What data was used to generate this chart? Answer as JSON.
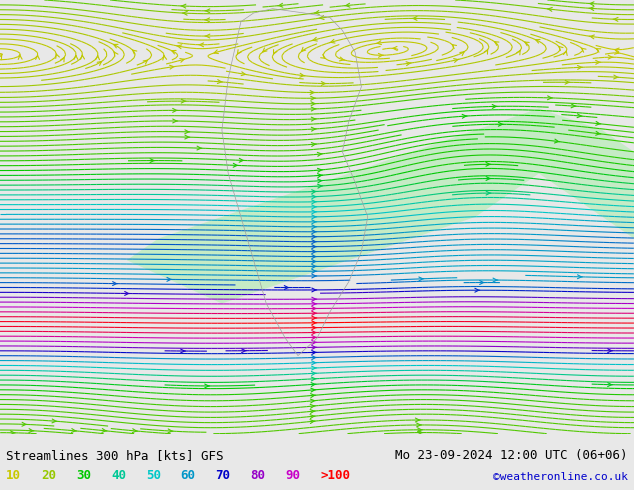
{
  "title_left": "Streamlines 300 hPa [kts] GFS",
  "title_right": "Mo 23-09-2024 12:00 UTC (06+06)",
  "watermark": "©weatheronline.co.uk",
  "legend_values": [
    "10",
    "20",
    "30",
    "40",
    "50",
    "60",
    "70",
    "80",
    "90",
    ">100"
  ],
  "legend_colors": [
    "#c8c800",
    "#96c800",
    "#00c800",
    "#00c896",
    "#00c8c8",
    "#0096c8",
    "#0000c8",
    "#9600c8",
    "#c800c8",
    "#ff0000"
  ],
  "bg_color": "#e8e8e8",
  "map_bg": "#e8e8e8",
  "fig_width": 6.34,
  "fig_height": 4.9,
  "bottom_bar_color": "#ffffff",
  "title_color": "#000000",
  "watermark_color": "#0000cc"
}
